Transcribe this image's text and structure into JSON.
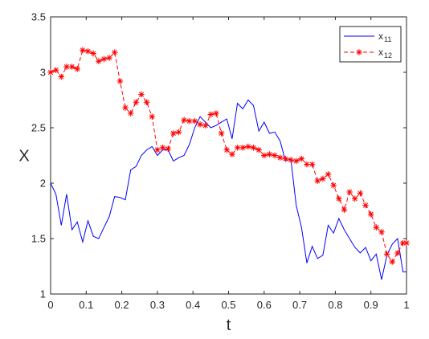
{
  "chart_data": {
    "type": "line",
    "xlabel": "t",
    "ylabel": "X",
    "xlim": [
      0,
      1
    ],
    "ylim": [
      1,
      3.5
    ],
    "xticks": [
      0,
      0.1,
      0.2,
      0.3,
      0.4,
      0.5,
      0.6,
      0.7,
      0.8,
      0.9,
      1
    ],
    "xtick_labels": [
      "0",
      "0.1",
      "0.2",
      "0.3",
      "0.4",
      "0.5",
      "0.6",
      "0.7",
      "0.8",
      "0.9",
      "1"
    ],
    "yticks": [
      1,
      1.5,
      2,
      2.5,
      3,
      3.5
    ],
    "ytick_labels": [
      "1",
      "1.5",
      "2",
      "2.5",
      "3",
      "3.5"
    ],
    "grid": false,
    "legend_position": "top-right",
    "series": [
      {
        "name": "x11",
        "legend_main": "x",
        "legend_sub": "11",
        "color": "#0000ff",
        "line_style": "solid",
        "marker": "none",
        "x": [
          0,
          0.015,
          0.03,
          0.045,
          0.06,
          0.075,
          0.09,
          0.105,
          0.12,
          0.135,
          0.15,
          0.165,
          0.18,
          0.195,
          0.21,
          0.225,
          0.24,
          0.255,
          0.27,
          0.285,
          0.3,
          0.315,
          0.33,
          0.345,
          0.36,
          0.375,
          0.39,
          0.405,
          0.42,
          0.435,
          0.45,
          0.465,
          0.48,
          0.495,
          0.51,
          0.525,
          0.54,
          0.555,
          0.57,
          0.585,
          0.6,
          0.615,
          0.63,
          0.645,
          0.66,
          0.675,
          0.69,
          0.705,
          0.72,
          0.735,
          0.75,
          0.765,
          0.78,
          0.795,
          0.81,
          0.825,
          0.84,
          0.855,
          0.87,
          0.885,
          0.9,
          0.915,
          0.93,
          0.945,
          0.96,
          0.975,
          0.99,
          1
        ],
        "y": [
          2.0,
          1.9,
          1.62,
          1.9,
          1.58,
          1.65,
          1.47,
          1.66,
          1.52,
          1.5,
          1.6,
          1.7,
          1.88,
          1.87,
          1.85,
          2.12,
          2.15,
          2.25,
          2.3,
          2.33,
          2.25,
          2.3,
          2.3,
          2.2,
          2.23,
          2.25,
          2.35,
          2.5,
          2.6,
          2.55,
          2.5,
          2.52,
          2.55,
          2.58,
          2.4,
          2.72,
          2.67,
          2.75,
          2.7,
          2.47,
          2.55,
          2.45,
          2.46,
          2.38,
          2.2,
          2.22,
          1.8,
          1.6,
          1.28,
          1.43,
          1.32,
          1.35,
          1.62,
          1.55,
          1.68,
          1.58,
          1.5,
          1.42,
          1.37,
          1.42,
          1.3,
          1.36,
          1.13,
          1.35,
          1.45,
          1.5,
          1.2,
          1.2
        ]
      },
      {
        "name": "x12",
        "legend_main": "x",
        "legend_sub": "12",
        "color": "#ff0000",
        "line_style": "dashed",
        "marker": "asterisk",
        "x": [
          0,
          0.015,
          0.03,
          0.045,
          0.06,
          0.075,
          0.09,
          0.105,
          0.12,
          0.135,
          0.15,
          0.165,
          0.18,
          0.195,
          0.21,
          0.225,
          0.24,
          0.255,
          0.27,
          0.285,
          0.3,
          0.315,
          0.33,
          0.345,
          0.36,
          0.375,
          0.39,
          0.405,
          0.42,
          0.435,
          0.45,
          0.465,
          0.48,
          0.495,
          0.51,
          0.525,
          0.54,
          0.555,
          0.57,
          0.585,
          0.6,
          0.615,
          0.63,
          0.645,
          0.66,
          0.675,
          0.69,
          0.705,
          0.72,
          0.735,
          0.75,
          0.765,
          0.78,
          0.795,
          0.81,
          0.825,
          0.84,
          0.855,
          0.87,
          0.885,
          0.9,
          0.915,
          0.93,
          0.945,
          0.96,
          0.975,
          0.99,
          1
        ],
        "y": [
          3.0,
          3.02,
          2.96,
          3.05,
          3.05,
          3.03,
          3.2,
          3.19,
          3.17,
          3.1,
          3.12,
          3.13,
          3.18,
          2.92,
          2.68,
          2.63,
          2.73,
          2.8,
          2.73,
          2.6,
          2.3,
          2.32,
          2.31,
          2.45,
          2.46,
          2.57,
          2.56,
          2.56,
          2.53,
          2.52,
          2.62,
          2.63,
          2.45,
          2.3,
          2.26,
          2.32,
          2.32,
          2.33,
          2.32,
          2.3,
          2.25,
          2.26,
          2.25,
          2.23,
          2.22,
          2.21,
          2.2,
          2.22,
          2.17,
          2.17,
          2.02,
          2.04,
          2.08,
          1.98,
          1.86,
          1.76,
          1.92,
          1.86,
          1.91,
          1.8,
          1.72,
          1.6,
          1.56,
          1.36,
          1.29,
          1.37,
          1.46,
          1.46
        ]
      }
    ]
  }
}
